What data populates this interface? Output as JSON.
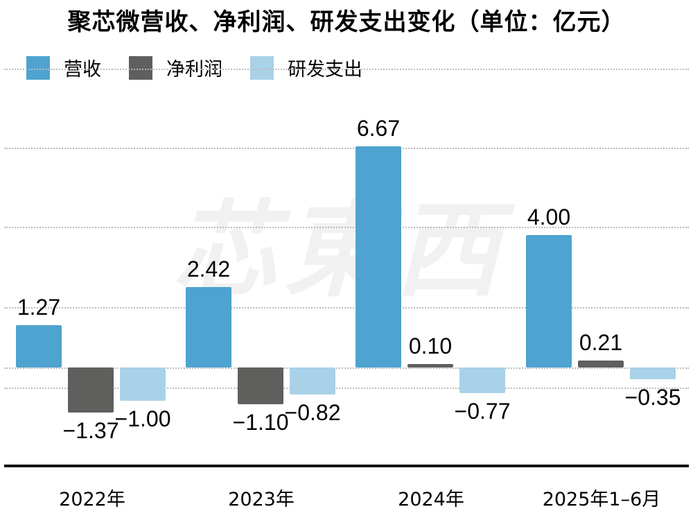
{
  "title": "聚芯微营收、净利润、研发支出变化（单位：亿元）",
  "legend": [
    {
      "label": "营收",
      "color": "#4ea3d0"
    },
    {
      "label": "净利润",
      "color": "#5f605e"
    },
    {
      "label": "研发支出",
      "color": "#a9d2e8"
    }
  ],
  "watermark": "芯東西",
  "chart_data": {
    "type": "bar",
    "title": "聚芯微营收、净利润、研发支出变化（单位：亿元）",
    "categories": [
      "2022年",
      "2023年",
      "2024年",
      "2025年1–6月"
    ],
    "series": [
      {
        "name": "营收",
        "values": [
          1.27,
          2.42,
          6.67,
          4.0
        ],
        "labels": [
          "1.27",
          "2.42",
          "6.67",
          "4.00"
        ]
      },
      {
        "name": "净利润",
        "values": [
          -1.37,
          -1.1,
          0.1,
          0.21
        ],
        "labels": [
          "−1.37",
          "−1.10",
          "0.10",
          "0.21"
        ]
      },
      {
        "name": "研发支出",
        "values": [
          -1.0,
          -0.82,
          -0.77,
          -0.35
        ],
        "labels": [
          "−1.00",
          "−0.82",
          "−0.77",
          "−0.35"
        ]
      }
    ],
    "xlabel": "",
    "ylabel": "",
    "legend_position": "top-left",
    "grid": true
  }
}
